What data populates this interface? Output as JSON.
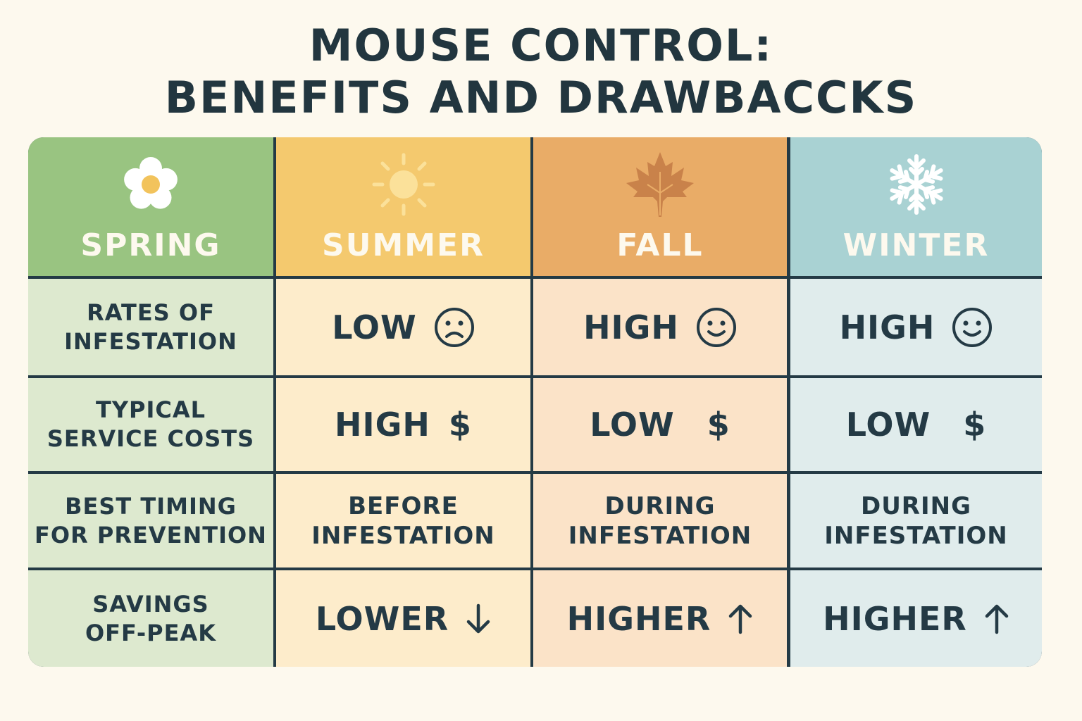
{
  "title": {
    "line1": "MOUSE CONTROL:",
    "line2": "BENEFITS AND DRAWBACCKS"
  },
  "colors": {
    "spring_head": "#99c481",
    "spring_body": "#dde9cf",
    "summer_head": "#f4c96e",
    "summer_body": "#fdeccb",
    "fall_head": "#e9ac67",
    "fall_body": "#fbe3c8",
    "winter_head": "#a9d2d3",
    "winter_body": "#e0ecec",
    "grid_line": "#243a45"
  },
  "columns": [
    {
      "name": "SPRING",
      "icon": "flower-icon"
    },
    {
      "name": "SUMMER",
      "icon": "sun-icon"
    },
    {
      "name": "FALL",
      "icon": "maple-leaf-icon"
    },
    {
      "name": "WINTER",
      "icon": "snowflake-icon"
    }
  ],
  "rows": [
    {
      "label": [
        "RATES OF",
        "INFESTATION"
      ],
      "cells": [
        {
          "text": "LOW",
          "symbol": "sad-face-icon"
        },
        {
          "text": "HIGH",
          "symbol": "smiley-face-icon"
        },
        {
          "text": "HIGH",
          "symbol": "smiley-face-icon"
        }
      ]
    },
    {
      "label": [
        "TYPICAL",
        "SERVICE COSTS"
      ],
      "cells": [
        {
          "text": "HIGH",
          "symbol": "$"
        },
        {
          "text": "LOW",
          "symbol": "$"
        },
        {
          "text": "LOW",
          "symbol": "$"
        }
      ]
    },
    {
      "label": [
        "BEST TIMING",
        "FOR PREVENTION"
      ],
      "cells": [
        {
          "lines": [
            "BEFORE",
            "INFESTATION"
          ]
        },
        {
          "lines": [
            "DURING",
            "INFESTATION"
          ]
        },
        {
          "lines": [
            "DURING",
            "INFESTATION"
          ]
        }
      ]
    },
    {
      "label": [
        "SAVINGS",
        "OFF-PEAK"
      ],
      "cells": [
        {
          "text": "LOWER",
          "symbol": "arrow-down-icon"
        },
        {
          "text": "HIGHER",
          "symbol": "arrow-up-icon"
        },
        {
          "text": "HIGHER",
          "symbol": "arrow-up-icon"
        }
      ]
    }
  ]
}
